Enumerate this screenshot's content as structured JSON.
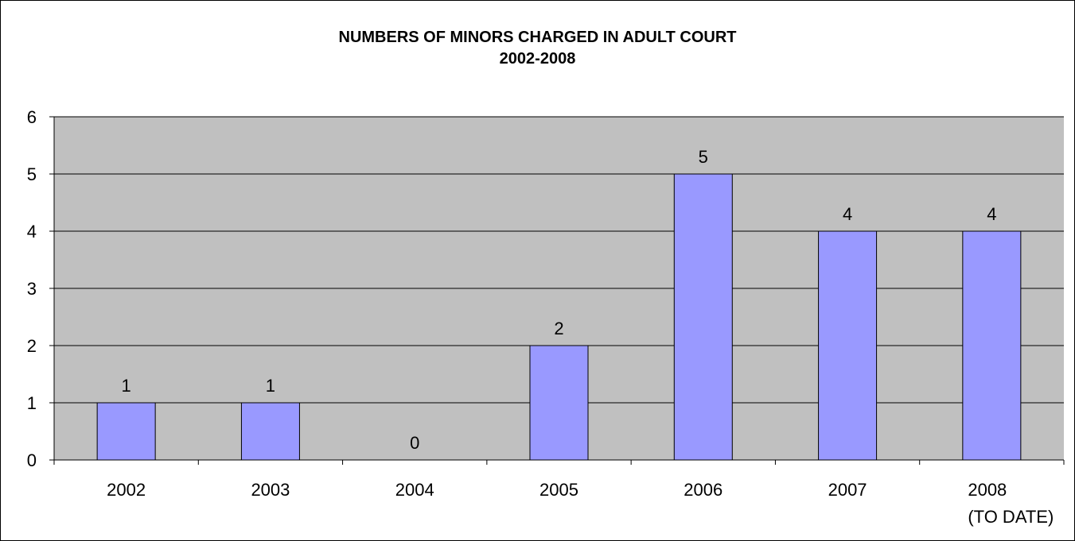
{
  "chart_data": {
    "type": "bar",
    "title": "NUMBERS OF MINORS CHARGED IN ADULT COURT",
    "subtitle": "2002-2008",
    "categories": [
      {
        "lines": [
          "2002"
        ]
      },
      {
        "lines": [
          "2003"
        ]
      },
      {
        "lines": [
          "2004"
        ]
      },
      {
        "lines": [
          "2005"
        ]
      },
      {
        "lines": [
          "2006"
        ]
      },
      {
        "lines": [
          "2007"
        ]
      },
      {
        "lines": [
          "2008",
          "(TO DATE)"
        ]
      }
    ],
    "values": [
      1,
      1,
      0,
      2,
      5,
      4,
      4
    ],
    "data_labels": [
      "1",
      "1",
      "0",
      "2",
      "5",
      "4",
      "4"
    ],
    "y_ticks": [
      "0",
      "1",
      "2",
      "3",
      "4",
      "5",
      "6"
    ],
    "ylim": [
      0,
      6
    ],
    "grid": true,
    "legend": "none",
    "colors": {
      "plot_background": "#c0c0c0",
      "bar_fill": "#9999ff",
      "bar_stroke": "#000000",
      "gridline": "#000000"
    }
  }
}
